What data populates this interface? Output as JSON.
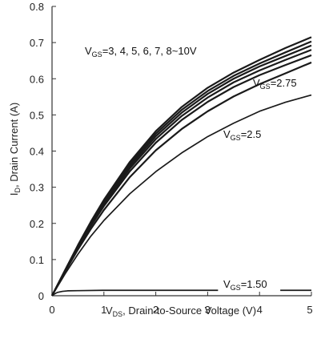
{
  "chart_data": {
    "type": "line",
    "title": "",
    "xlabel": {
      "prefix": "V",
      "sub": "DS",
      "rest": ", Drain-to-Source Voltage (V)"
    },
    "ylabel": {
      "prefix": "I",
      "sub": "D",
      "rest": ", Drain Current (A)"
    },
    "xlim": [
      0,
      5
    ],
    "ylim": [
      0,
      0.8
    ],
    "xticks": [
      "0",
      "1",
      "2",
      "3",
      "4",
      "5"
    ],
    "yticks": [
      "0",
      "0.1",
      "0.2",
      "0.3",
      "0.4",
      "0.5",
      "0.6",
      "0.7",
      "0.8"
    ],
    "grid": false,
    "line_color": "#1a1a1a",
    "series": [
      {
        "x": [
          0,
          0.25,
          0.5,
          0.75,
          1,
          1.5,
          2,
          2.5,
          3,
          3.5,
          4,
          4.5,
          5
        ],
        "y": [
          0,
          0.07,
          0.14,
          0.205,
          0.265,
          0.37,
          0.455,
          0.522,
          0.575,
          0.617,
          0.652,
          0.685,
          0.715
        ]
      },
      {
        "x": [
          0,
          0.25,
          0.5,
          0.75,
          1,
          1.5,
          2,
          2.5,
          3,
          3.5,
          4,
          4.5,
          5
        ],
        "y": [
          0,
          0.07,
          0.138,
          0.202,
          0.261,
          0.364,
          0.448,
          0.514,
          0.566,
          0.608,
          0.642,
          0.673,
          0.703
        ]
      },
      {
        "x": [
          0,
          0.25,
          0.5,
          0.75,
          1,
          1.5,
          2,
          2.5,
          3,
          3.5,
          4,
          4.5,
          5
        ],
        "y": [
          0,
          0.069,
          0.136,
          0.199,
          0.257,
          0.358,
          0.441,
          0.506,
          0.558,
          0.6,
          0.634,
          0.663,
          0.692
        ]
      },
      {
        "x": [
          0,
          0.25,
          0.5,
          0.75,
          1,
          1.5,
          2,
          2.5,
          3,
          3.5,
          4,
          4.5,
          5
        ],
        "y": [
          0,
          0.068,
          0.134,
          0.196,
          0.253,
          0.352,
          0.433,
          0.497,
          0.548,
          0.59,
          0.623,
          0.652,
          0.68
        ]
      },
      {
        "x": [
          0,
          0.25,
          0.5,
          0.75,
          1,
          1.5,
          2,
          2.5,
          3,
          3.5,
          4,
          4.5,
          5
        ],
        "y": [
          0,
          0.067,
          0.132,
          0.193,
          0.248,
          0.344,
          0.423,
          0.486,
          0.536,
          0.577,
          0.61,
          0.638,
          0.665
        ]
      },
      {
        "x": [
          0,
          0.25,
          0.5,
          0.75,
          1,
          1.5,
          2,
          2.5,
          3,
          3.5,
          4,
          4.5,
          5
        ],
        "y": [
          0,
          0.066,
          0.128,
          0.185,
          0.237,
          0.328,
          0.402,
          0.461,
          0.51,
          0.551,
          0.585,
          0.615,
          0.645
        ]
      },
      {
        "x": [
          0,
          0.25,
          0.5,
          0.75,
          1,
          1.5,
          2,
          2.5,
          3,
          3.5,
          4,
          4.5,
          5
        ],
        "y": [
          0,
          0.06,
          0.115,
          0.165,
          0.208,
          0.282,
          0.343,
          0.395,
          0.44,
          0.477,
          0.51,
          0.535,
          0.555
        ]
      },
      {
        "x": [
          0,
          0.05,
          0.1,
          0.2,
          0.3,
          0.5,
          1,
          2,
          3,
          3.2
        ],
        "y": [
          0,
          0.005,
          0.009,
          0.012,
          0.0135,
          0.014,
          0.015,
          0.015,
          0.015,
          0.015
        ]
      },
      {
        "x": [
          4.4,
          5
        ],
        "y": [
          0.015,
          0.015
        ]
      }
    ],
    "annotations": [
      {
        "prefix": "V",
        "sub": "GS",
        "rest": "=3, 4, 5, 6, 7, 8~10V"
      },
      {
        "prefix": "V",
        "sub": "GS",
        "rest": "=2.75"
      },
      {
        "prefix": "V",
        "sub": "GS",
        "rest": "=2.5"
      },
      {
        "prefix": "V",
        "sub": "GS",
        "rest": "=1.50"
      }
    ]
  }
}
